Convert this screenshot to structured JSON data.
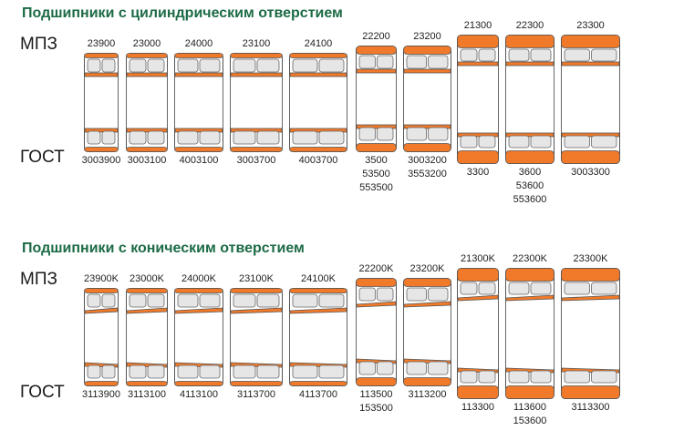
{
  "sections": [
    {
      "title": "Подшипники с цилиндрическим отверстием",
      "label_top": "МПЗ",
      "label_bottom": "ГОСТ",
      "bearings": [
        {
          "mpz": "23900",
          "gost": [
            "3003900"
          ],
          "style": "thin"
        },
        {
          "mpz": "23000",
          "gost": [
            "3003100"
          ],
          "style": "thin"
        },
        {
          "mpz": "24000",
          "gost": [
            "4003100"
          ],
          "style": "thin"
        },
        {
          "mpz": "23100",
          "gost": [
            "3003700"
          ],
          "style": "thin"
        },
        {
          "mpz": "24100",
          "gost": [
            "4003700"
          ],
          "style": "thin"
        },
        {
          "mpz": "22200",
          "gost": [
            "3500",
            "53500",
            "553500"
          ],
          "style": "medium"
        },
        {
          "mpz": "23200",
          "gost": [
            "3003200",
            "3553200"
          ],
          "style": "medium"
        },
        {
          "mpz": "21300",
          "gost": [
            "3300"
          ],
          "style": "thick"
        },
        {
          "mpz": "22300",
          "gost": [
            "3600",
            "53600",
            "553600"
          ],
          "style": "thick"
        },
        {
          "mpz": "23300",
          "gost": [
            "3003300"
          ],
          "style": "thick"
        }
      ]
    },
    {
      "title": "Подшипники с коническим отверстием",
      "label_top": "МПЗ",
      "label_bottom": "ГОСТ",
      "bearings": [
        {
          "mpz": "23900K",
          "gost": [
            "3113900"
          ],
          "style": "thin"
        },
        {
          "mpz": "23000K",
          "gost": [
            "3113100"
          ],
          "style": "thin"
        },
        {
          "mpz": "24000K",
          "gost": [
            "4113100"
          ],
          "style": "thin"
        },
        {
          "mpz": "23100K",
          "gost": [
            "3113700"
          ],
          "style": "thin"
        },
        {
          "mpz": "24100K",
          "gost": [
            "4113700"
          ],
          "style": "thin"
        },
        {
          "mpz": "22200K",
          "gost": [
            "113500",
            "153500"
          ],
          "style": "medium"
        },
        {
          "mpz": "23200K",
          "gost": [
            "3113200"
          ],
          "style": "medium"
        },
        {
          "mpz": "21300K",
          "gost": [
            "113300"
          ],
          "style": "thick"
        },
        {
          "mpz": "22300K",
          "gost": [
            "113600",
            "153600"
          ],
          "style": "thick"
        },
        {
          "mpz": "23300K",
          "gost": [
            "3113300"
          ],
          "style": "thick"
        }
      ]
    }
  ],
  "colors": {
    "ring": "#f07a2a",
    "ring_stroke": "#555555",
    "roller": "#e6e6e6",
    "title": "#1c6b45"
  }
}
